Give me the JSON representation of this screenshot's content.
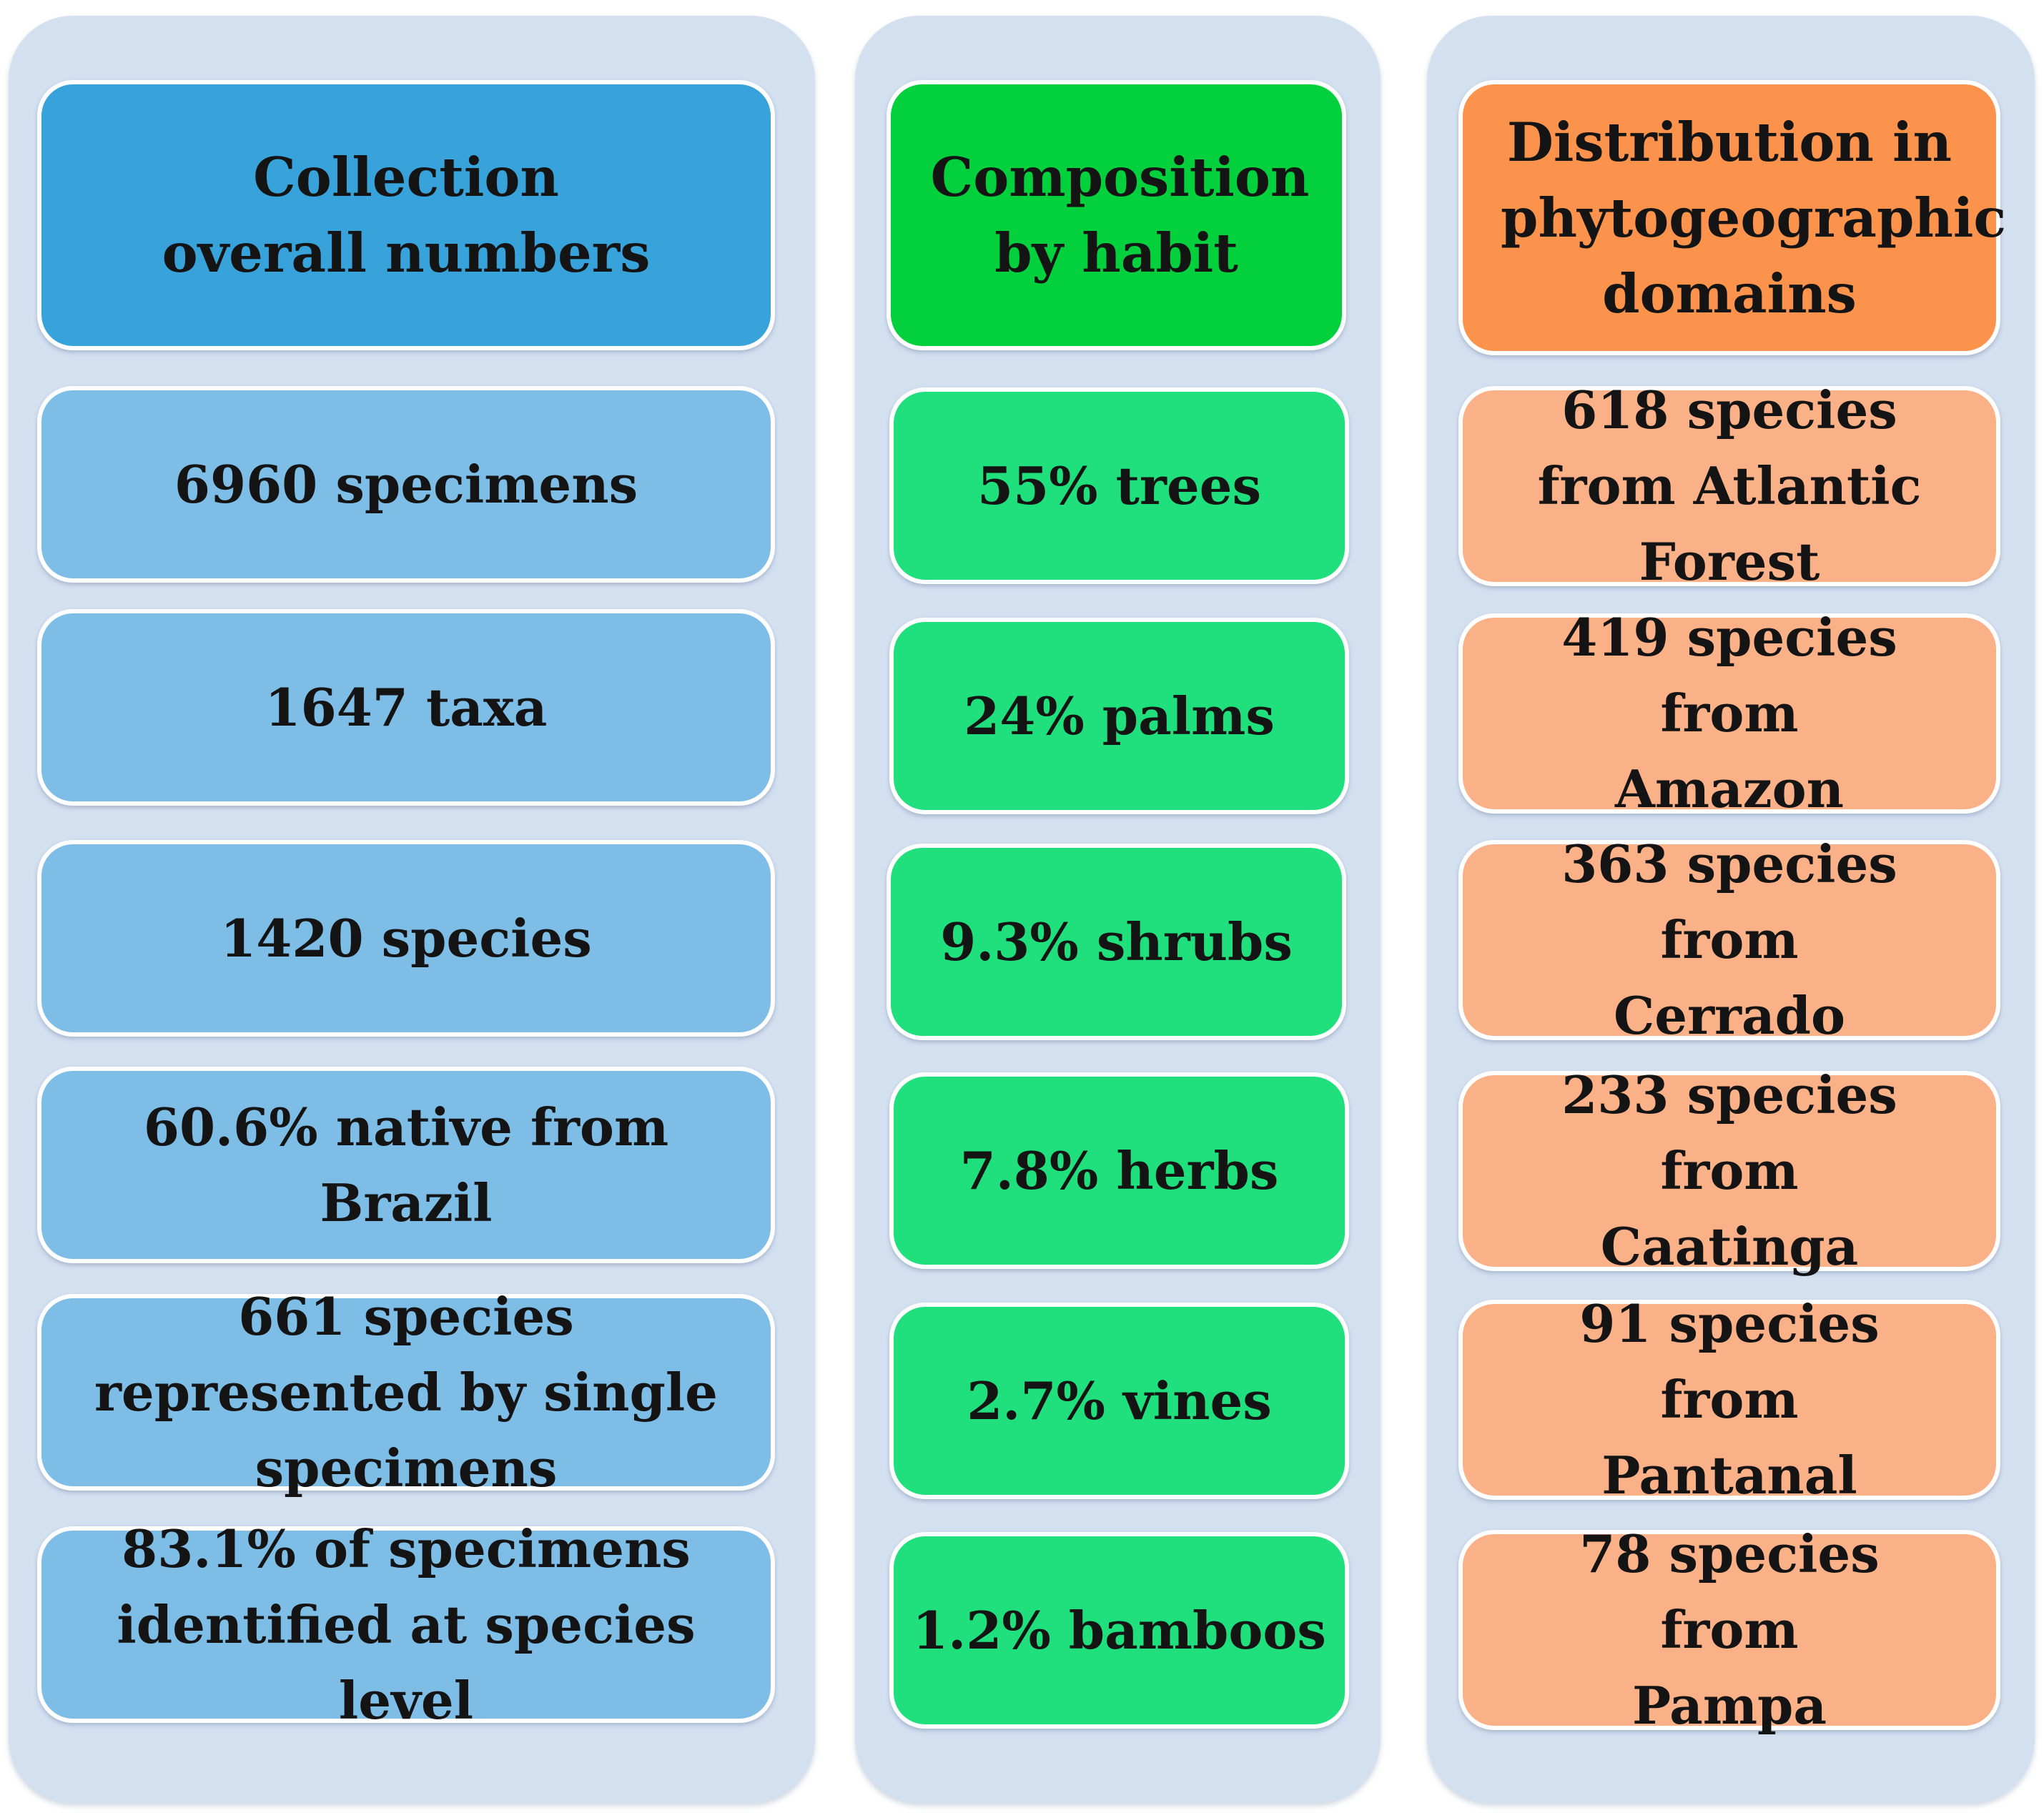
{
  "colors": {
    "panel_bg": "#d3e0f0",
    "col1_header": "#38a2db",
    "col1_item": "#7dbde6",
    "col2_header": "#02d13d",
    "col2_item": "#1fe07c",
    "col3_header": "#fb934c",
    "col3_item": "#fbb188"
  },
  "columns": [
    {
      "header": "Collection overall numbers",
      "items": [
        "6960 specimens",
        "1647 taxa",
        "1420 species",
        "60.6% native from Brazil",
        "661 species represented by single specimens",
        "83.1% of specimens identified at species level"
      ]
    },
    {
      "header": "Composition by habit",
      "items": [
        "55% trees",
        "24% palms",
        "9.3% shrubs",
        "7.8% herbs",
        "2.7% vines",
        "1.2% bamboos"
      ]
    },
    {
      "header": "Distribution in phytogeographic domains",
      "items": [
        "618 species from Atlantic Forest",
        "419 species from Amazon",
        "363 species from Cerrado",
        "233 species from Caatinga",
        "91 species from Pantanal",
        "78 species from Pampa"
      ]
    }
  ]
}
